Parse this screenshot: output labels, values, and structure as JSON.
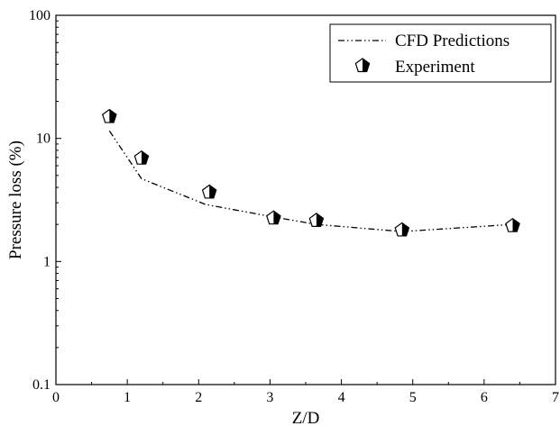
{
  "chart_data": {
    "type": "scatter",
    "title": "",
    "xlabel": "Z/D",
    "ylabel": "Pressure loss (%)",
    "xlim": [
      0,
      7
    ],
    "ylim": [
      0.1,
      100
    ],
    "yscale": "log",
    "x_ticks": [
      "0",
      "1",
      "2",
      "3",
      "4",
      "5",
      "6",
      "7"
    ],
    "y_ticks": [
      "0.1",
      "1",
      "10",
      "100"
    ],
    "grid": false,
    "legend_position": "top-right",
    "series": [
      {
        "name": "CFD Predictions",
        "kind": "line",
        "style": "dash-dot-dot",
        "x": [
          0.75,
          1.2,
          2.1,
          3.05,
          3.65,
          4.85,
          6.4
        ],
        "y": [
          11.5,
          4.7,
          2.9,
          2.3,
          2.0,
          1.75,
          2.0
        ]
      },
      {
        "name": "Experiment",
        "kind": "marker",
        "marker": "pentagon-half-filled",
        "x": [
          0.75,
          1.2,
          2.15,
          3.05,
          3.65,
          4.85,
          6.4
        ],
        "y": [
          15.0,
          6.9,
          3.65,
          2.25,
          2.15,
          1.8,
          1.95
        ]
      }
    ]
  }
}
